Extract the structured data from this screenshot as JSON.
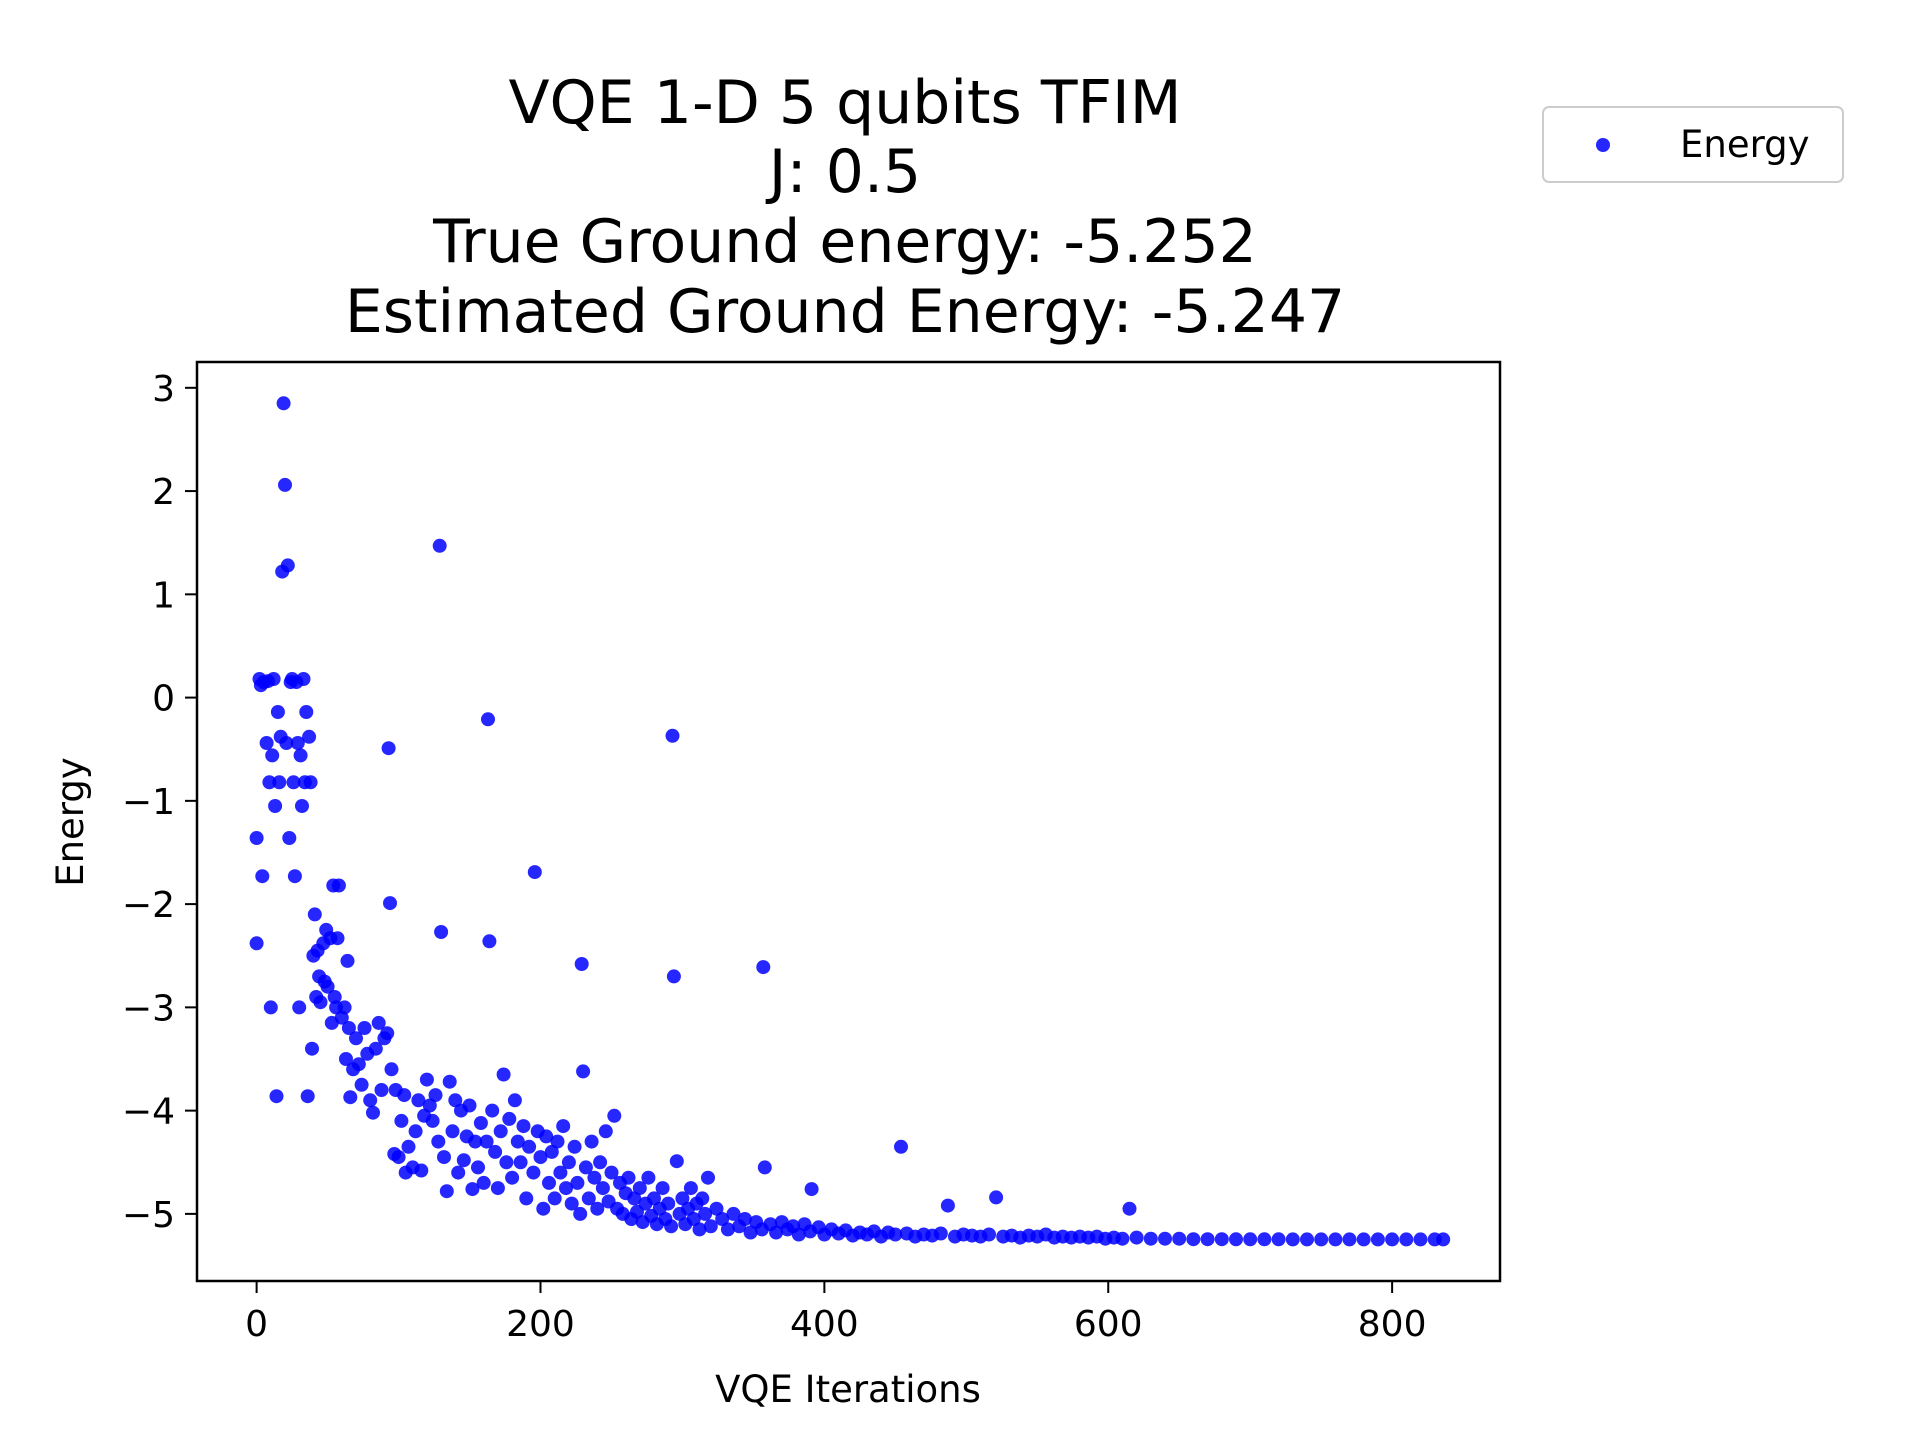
{
  "chart_data": {
    "type": "scatter",
    "title_lines": [
      "VQE 1-D 5 qubits TFIM",
      "J: 0.5",
      "True Ground energy: -5.252",
      "Estimated Ground Energy: -5.247"
    ],
    "xlabel": "VQE Iterations",
    "ylabel": "Energy",
    "xlim": [
      -42,
      876
    ],
    "ylim": [
      -5.65,
      3.25
    ],
    "xticks": [
      0,
      200,
      400,
      600,
      800
    ],
    "yticks": [
      3,
      2,
      1,
      0,
      -1,
      -2,
      -3,
      -4,
      -5
    ],
    "xtick_labels": [
      "0",
      "200",
      "400",
      "600",
      "800"
    ],
    "ytick_labels": [
      "3",
      "2",
      "1",
      "0",
      "−1",
      "−2",
      "−3",
      "−4",
      "−5"
    ],
    "legend": {
      "location": "outside-top-right",
      "entries": [
        "Energy"
      ]
    },
    "colors": {
      "marker": "#0000ff",
      "axes": "#000000",
      "legend_border": "#cccccc"
    },
    "grid": false,
    "series": [
      {
        "name": "Energy",
        "points": [
          [
            0,
            -2.38
          ],
          [
            0,
            -1.36
          ],
          [
            2,
            0.18
          ],
          [
            3,
            0.12
          ],
          [
            4,
            -1.73
          ],
          [
            5,
            0.15
          ],
          [
            7,
            -0.44
          ],
          [
            8,
            0.16
          ],
          [
            9,
            -0.82
          ],
          [
            10,
            -3.0
          ],
          [
            11,
            -0.56
          ],
          [
            12,
            0.18
          ],
          [
            13,
            -1.05
          ],
          [
            14,
            -3.86
          ],
          [
            15,
            -0.14
          ],
          [
            16,
            -0.82
          ],
          [
            17,
            -0.38
          ],
          [
            18,
            1.22
          ],
          [
            19,
            2.85
          ],
          [
            20,
            2.06
          ],
          [
            21,
            -0.44
          ],
          [
            22,
            1.28
          ],
          [
            23,
            -1.36
          ],
          [
            24,
            0.15
          ],
          [
            25,
            0.18
          ],
          [
            26,
            -0.82
          ],
          [
            27,
            -1.73
          ],
          [
            28,
            0.15
          ],
          [
            29,
            -0.44
          ],
          [
            30,
            -3.0
          ],
          [
            31,
            -0.56
          ],
          [
            32,
            -1.05
          ],
          [
            33,
            0.18
          ],
          [
            34,
            -0.82
          ],
          [
            35,
            -0.14
          ],
          [
            36,
            -3.86
          ],
          [
            37,
            -0.38
          ],
          [
            38,
            -0.82
          ],
          [
            39,
            -3.4
          ],
          [
            40,
            -2.5
          ],
          [
            41,
            -2.1
          ],
          [
            42,
            -2.9
          ],
          [
            43,
            -2.45
          ],
          [
            44,
            -2.7
          ],
          [
            45,
            -2.95
          ],
          [
            47,
            -2.38
          ],
          [
            48,
            -2.75
          ],
          [
            49,
            -2.25
          ],
          [
            50,
            -2.8
          ],
          [
            52,
            -2.33
          ],
          [
            53,
            -3.15
          ],
          [
            54,
            -1.82
          ],
          [
            55,
            -2.9
          ],
          [
            56,
            -3.0
          ],
          [
            57,
            -2.33
          ],
          [
            58,
            -1.82
          ],
          [
            60,
            -3.1
          ],
          [
            62,
            -3.0
          ],
          [
            63,
            -3.5
          ],
          [
            64,
            -2.55
          ],
          [
            65,
            -3.2
          ],
          [
            66,
            -3.87
          ],
          [
            68,
            -3.6
          ],
          [
            70,
            -3.3
          ],
          [
            72,
            -3.55
          ],
          [
            74,
            -3.75
          ],
          [
            76,
            -3.2
          ],
          [
            78,
            -3.45
          ],
          [
            80,
            -3.9
          ],
          [
            82,
            -4.02
          ],
          [
            84,
            -3.4
          ],
          [
            86,
            -3.15
          ],
          [
            88,
            -3.8
          ],
          [
            90,
            -3.3
          ],
          [
            92,
            -3.25
          ],
          [
            93,
            -0.49
          ],
          [
            94,
            -1.99
          ],
          [
            95,
            -3.6
          ],
          [
            97,
            -4.42
          ],
          [
            98,
            -3.8
          ],
          [
            100,
            -4.45
          ],
          [
            102,
            -4.1
          ],
          [
            104,
            -3.85
          ],
          [
            105,
            -4.6
          ],
          [
            107,
            -4.35
          ],
          [
            110,
            -4.55
          ],
          [
            112,
            -4.2
          ],
          [
            114,
            -3.9
          ],
          [
            116,
            -4.58
          ],
          [
            118,
            -4.05
          ],
          [
            120,
            -3.7
          ],
          [
            122,
            -3.95
          ],
          [
            124,
            -4.1
          ],
          [
            126,
            -3.85
          ],
          [
            128,
            -4.3
          ],
          [
            129,
            1.47
          ],
          [
            130,
            -2.27
          ],
          [
            132,
            -4.45
          ],
          [
            134,
            -4.78
          ],
          [
            136,
            -3.72
          ],
          [
            138,
            -4.2
          ],
          [
            140,
            -3.9
          ],
          [
            142,
            -4.6
          ],
          [
            144,
            -4.0
          ],
          [
            146,
            -4.48
          ],
          [
            148,
            -4.25
          ],
          [
            150,
            -3.95
          ],
          [
            152,
            -4.76
          ],
          [
            154,
            -4.3
          ],
          [
            156,
            -4.55
          ],
          [
            158,
            -4.12
          ],
          [
            160,
            -4.7
          ],
          [
            162,
            -4.3
          ],
          [
            163,
            -0.21
          ],
          [
            164,
            -2.36
          ],
          [
            166,
            -4.0
          ],
          [
            168,
            -4.4
          ],
          [
            170,
            -4.75
          ],
          [
            172,
            -4.2
          ],
          [
            174,
            -3.65
          ],
          [
            176,
            -4.5
          ],
          [
            178,
            -4.08
          ],
          [
            180,
            -4.65
          ],
          [
            182,
            -3.9
          ],
          [
            184,
            -4.3
          ],
          [
            186,
            -4.5
          ],
          [
            188,
            -4.15
          ],
          [
            190,
            -4.85
          ],
          [
            192,
            -4.35
          ],
          [
            195,
            -4.6
          ],
          [
            196,
            -1.69
          ],
          [
            198,
            -4.2
          ],
          [
            200,
            -4.45
          ],
          [
            202,
            -4.95
          ],
          [
            204,
            -4.25
          ],
          [
            206,
            -4.7
          ],
          [
            208,
            -4.4
          ],
          [
            210,
            -4.85
          ],
          [
            212,
            -4.3
          ],
          [
            214,
            -4.6
          ],
          [
            216,
            -4.15
          ],
          [
            218,
            -4.75
          ],
          [
            220,
            -4.5
          ],
          [
            222,
            -4.9
          ],
          [
            224,
            -4.35
          ],
          [
            226,
            -4.7
          ],
          [
            228,
            -5.0
          ],
          [
            229,
            -2.58
          ],
          [
            230,
            -3.62
          ],
          [
            232,
            -4.55
          ],
          [
            234,
            -4.85
          ],
          [
            236,
            -4.3
          ],
          [
            238,
            -4.65
          ],
          [
            240,
            -4.95
          ],
          [
            242,
            -4.5
          ],
          [
            244,
            -4.75
          ],
          [
            246,
            -4.2
          ],
          [
            248,
            -4.88
          ],
          [
            250,
            -4.6
          ],
          [
            252,
            -4.05
          ],
          [
            254,
            -4.95
          ],
          [
            256,
            -4.7
          ],
          [
            258,
            -5.0
          ],
          [
            260,
            -4.8
          ],
          [
            262,
            -4.65
          ],
          [
            264,
            -5.05
          ],
          [
            266,
            -4.85
          ],
          [
            268,
            -4.98
          ],
          [
            270,
            -4.75
          ],
          [
            272,
            -5.08
          ],
          [
            274,
            -4.9
          ],
          [
            276,
            -4.65
          ],
          [
            278,
            -5.02
          ],
          [
            280,
            -4.85
          ],
          [
            282,
            -5.1
          ],
          [
            284,
            -4.95
          ],
          [
            286,
            -4.75
          ],
          [
            288,
            -5.05
          ],
          [
            290,
            -4.9
          ],
          [
            292,
            -5.12
          ],
          [
            293,
            -0.37
          ],
          [
            294,
            -2.7
          ],
          [
            296,
            -4.49
          ],
          [
            298,
            -5.0
          ],
          [
            300,
            -4.85
          ],
          [
            302,
            -5.1
          ],
          [
            304,
            -4.95
          ],
          [
            306,
            -4.75
          ],
          [
            308,
            -5.05
          ],
          [
            310,
            -4.9
          ],
          [
            312,
            -5.15
          ],
          [
            314,
            -4.85
          ],
          [
            316,
            -5.0
          ],
          [
            318,
            -4.65
          ],
          [
            320,
            -5.12
          ],
          [
            324,
            -4.95
          ],
          [
            328,
            -5.05
          ],
          [
            332,
            -5.15
          ],
          [
            336,
            -5.0
          ],
          [
            340,
            -5.12
          ],
          [
            344,
            -5.05
          ],
          [
            348,
            -5.18
          ],
          [
            352,
            -5.08
          ],
          [
            356,
            -5.15
          ],
          [
            357,
            -2.61
          ],
          [
            358,
            -4.55
          ],
          [
            362,
            -5.1
          ],
          [
            366,
            -5.18
          ],
          [
            370,
            -5.08
          ],
          [
            374,
            -5.15
          ],
          [
            378,
            -5.12
          ],
          [
            382,
            -5.2
          ],
          [
            386,
            -5.1
          ],
          [
            390,
            -5.17
          ],
          [
            391,
            -4.76
          ],
          [
            396,
            -5.13
          ],
          [
            400,
            -5.2
          ],
          [
            405,
            -5.15
          ],
          [
            410,
            -5.19
          ],
          [
            415,
            -5.16
          ],
          [
            420,
            -5.21
          ],
          [
            425,
            -5.18
          ],
          [
            430,
            -5.2
          ],
          [
            435,
            -5.17
          ],
          [
            440,
            -5.22
          ],
          [
            445,
            -5.18
          ],
          [
            450,
            -5.2
          ],
          [
            454,
            -4.35
          ],
          [
            458,
            -5.19
          ],
          [
            464,
            -5.22
          ],
          [
            470,
            -5.2
          ],
          [
            476,
            -5.21
          ],
          [
            482,
            -5.19
          ],
          [
            487,
            -4.92
          ],
          [
            492,
            -5.22
          ],
          [
            498,
            -5.2
          ],
          [
            504,
            -5.21
          ],
          [
            510,
            -5.22
          ],
          [
            516,
            -5.2
          ],
          [
            521,
            -4.84
          ],
          [
            526,
            -5.22
          ],
          [
            532,
            -5.21
          ],
          [
            538,
            -5.23
          ],
          [
            544,
            -5.21
          ],
          [
            550,
            -5.22
          ],
          [
            556,
            -5.2
          ],
          [
            562,
            -5.23
          ],
          [
            568,
            -5.22
          ],
          [
            574,
            -5.23
          ],
          [
            580,
            -5.22
          ],
          [
            586,
            -5.23
          ],
          [
            592,
            -5.22
          ],
          [
            598,
            -5.24
          ],
          [
            604,
            -5.23
          ],
          [
            610,
            -5.24
          ],
          [
            615,
            -4.95
          ],
          [
            620,
            -5.23
          ],
          [
            630,
            -5.24
          ],
          [
            640,
            -5.24
          ],
          [
            650,
            -5.24
          ],
          [
            660,
            -5.245
          ],
          [
            670,
            -5.245
          ],
          [
            680,
            -5.245
          ],
          [
            690,
            -5.246
          ],
          [
            700,
            -5.246
          ],
          [
            710,
            -5.246
          ],
          [
            720,
            -5.246
          ],
          [
            730,
            -5.247
          ],
          [
            740,
            -5.247
          ],
          [
            750,
            -5.247
          ],
          [
            760,
            -5.247
          ],
          [
            770,
            -5.247
          ],
          [
            780,
            -5.247
          ],
          [
            790,
            -5.247
          ],
          [
            800,
            -5.247
          ],
          [
            810,
            -5.247
          ],
          [
            820,
            -5.247
          ],
          [
            830,
            -5.247
          ],
          [
            836,
            -5.247
          ]
        ]
      }
    ]
  }
}
